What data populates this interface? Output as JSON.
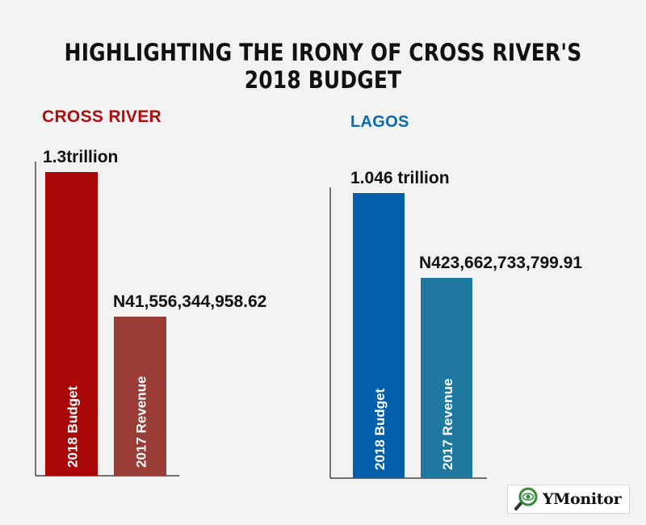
{
  "title": "HIGHLIGHTING THE IRONY OF CROSS RIVER'S 2018 BUDGET",
  "logo": {
    "text": "YMonitor"
  },
  "colors": {
    "cross_budget": "#a90707",
    "cross_revenue": "#9a3d36",
    "lagos_budget": "#035fa9",
    "lagos_revenue": "#1f78a0",
    "cross_label": "#b00d0d",
    "lagos_label": "#0b6aaf",
    "axis": "#222222"
  },
  "chart_data": [
    {
      "type": "bar",
      "title": "CROSS RIVER",
      "categories": [
        "2018 Budget",
        "2017 Revenue"
      ],
      "values": [
        1300000000000,
        41556344958.62
      ],
      "data_labels": [
        "1.3trillion",
        "N41,556,344,958.62"
      ]
    },
    {
      "type": "bar",
      "title": "LAGOS",
      "categories": [
        "2018 Budget",
        "2017 Revenue"
      ],
      "values": [
        1046000000000,
        423662733799.91
      ],
      "data_labels": [
        "1.046 trillion",
        "N423,662,733,799.91"
      ]
    }
  ]
}
